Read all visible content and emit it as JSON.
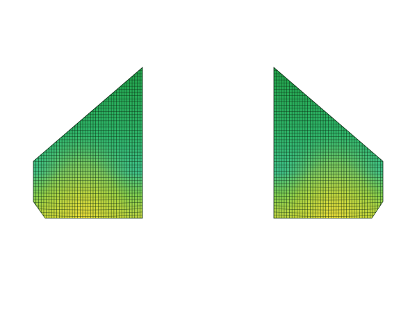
{
  "scene": {
    "background": "#ffffff",
    "mesh_line_color": "#0a2a12",
    "colormap": [
      "#1a8a3c",
      "#2aa650",
      "#3ec07a",
      "#5fd09a",
      "#8fd24a",
      "#c8d640",
      "#e8dc3a"
    ],
    "meshes": [
      {
        "name": "left-mesh-panel",
        "mirrored": false,
        "columns": 42,
        "rows": 48
      },
      {
        "name": "right-mesh-panel",
        "mirrored": true,
        "columns": 42,
        "rows": 48
      }
    ]
  }
}
